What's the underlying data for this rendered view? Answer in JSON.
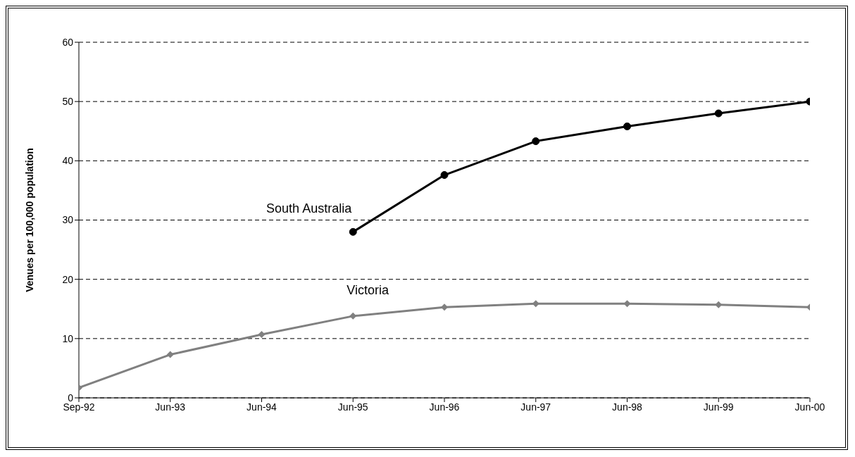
{
  "chart_data": {
    "type": "line",
    "ylabel": "Venues per 100,000 population",
    "categories": [
      "Sep-92",
      "Jun-93",
      "Jun-94",
      "Jun-95",
      "Jun-96",
      "Jun-97",
      "Jun-98",
      "Jun-99",
      "Jun-00"
    ],
    "series": [
      {
        "name": "South Australia",
        "color": "#000000",
        "marker": "circle",
        "values": [
          null,
          null,
          null,
          28,
          37.6,
          43.3,
          45.8,
          48,
          50
        ]
      },
      {
        "name": "Victoria",
        "color": "#808080",
        "marker": "diamond",
        "values": [
          1.7,
          7.3,
          10.7,
          13.8,
          15.3,
          15.9,
          15.9,
          15.7,
          15.3
        ]
      }
    ],
    "ylim": [
      0,
      60
    ],
    "yticks": [
      0,
      10,
      20,
      30,
      40,
      50,
      60
    ],
    "grid": "y",
    "legend": false
  }
}
